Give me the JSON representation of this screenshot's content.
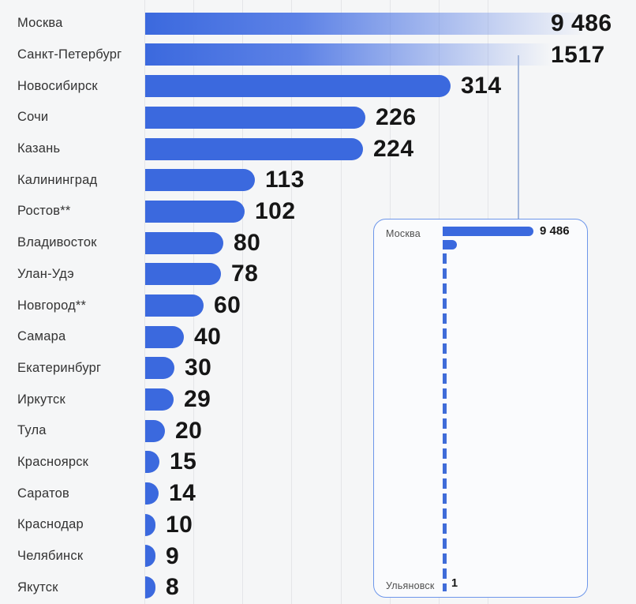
{
  "colors": {
    "page_bg": "#f5f6f7",
    "bar": "#3B69DE",
    "grid": "#e4e5e8",
    "label_text": "#333333",
    "value_text": "#161616",
    "inset_border": "#6d96ea",
    "inset_bg": "#fafbfd",
    "inset_label_text": "#4f4f4f",
    "leader_line": "#a3b6da",
    "dash": "#3f6cd9"
  },
  "chart_data": {
    "type": "bar",
    "orientation": "horizontal",
    "title": "",
    "xlabel": "",
    "ylabel": "",
    "grid": "vertical-lines",
    "x_gridline_step": 50,
    "x_axis_visible_range": [
      0,
      350
    ],
    "categories": [
      "Москва",
      "Санкт-Петербург",
      "Новосибирск",
      "Сочи",
      "Казань",
      "Калининград",
      "Ростов**",
      "Владивосток",
      "Улан-Удэ",
      "Новгород**",
      "Самара",
      "Екатеринбург",
      "Иркутск",
      "Тула",
      "Красноярск",
      "Саратов",
      "Краснодар",
      "Челябинск",
      "Якутск"
    ],
    "values": [
      9486,
      1517,
      314,
      226,
      224,
      113,
      102,
      80,
      78,
      60,
      40,
      30,
      29,
      20,
      15,
      14,
      10,
      9,
      8
    ],
    "value_labels": [
      "9 486",
      "1517",
      "314",
      "226",
      "224",
      "113",
      "102",
      "80",
      "78",
      "60",
      "40",
      "30",
      "29",
      "20",
      "15",
      "14",
      "10",
      "9",
      "8"
    ],
    "clipped_bars_faded": [
      "Москва",
      "Санкт-Петербург"
    ],
    "inset": {
      "type": "true-scale-mini-bar-chart",
      "top_label": "Москва",
      "top_value": 9486,
      "top_value_label": "9 486",
      "second_value": 1517,
      "bottom_label": "Ульяновск",
      "bottom_value": 1,
      "bottom_value_label": "1"
    }
  }
}
